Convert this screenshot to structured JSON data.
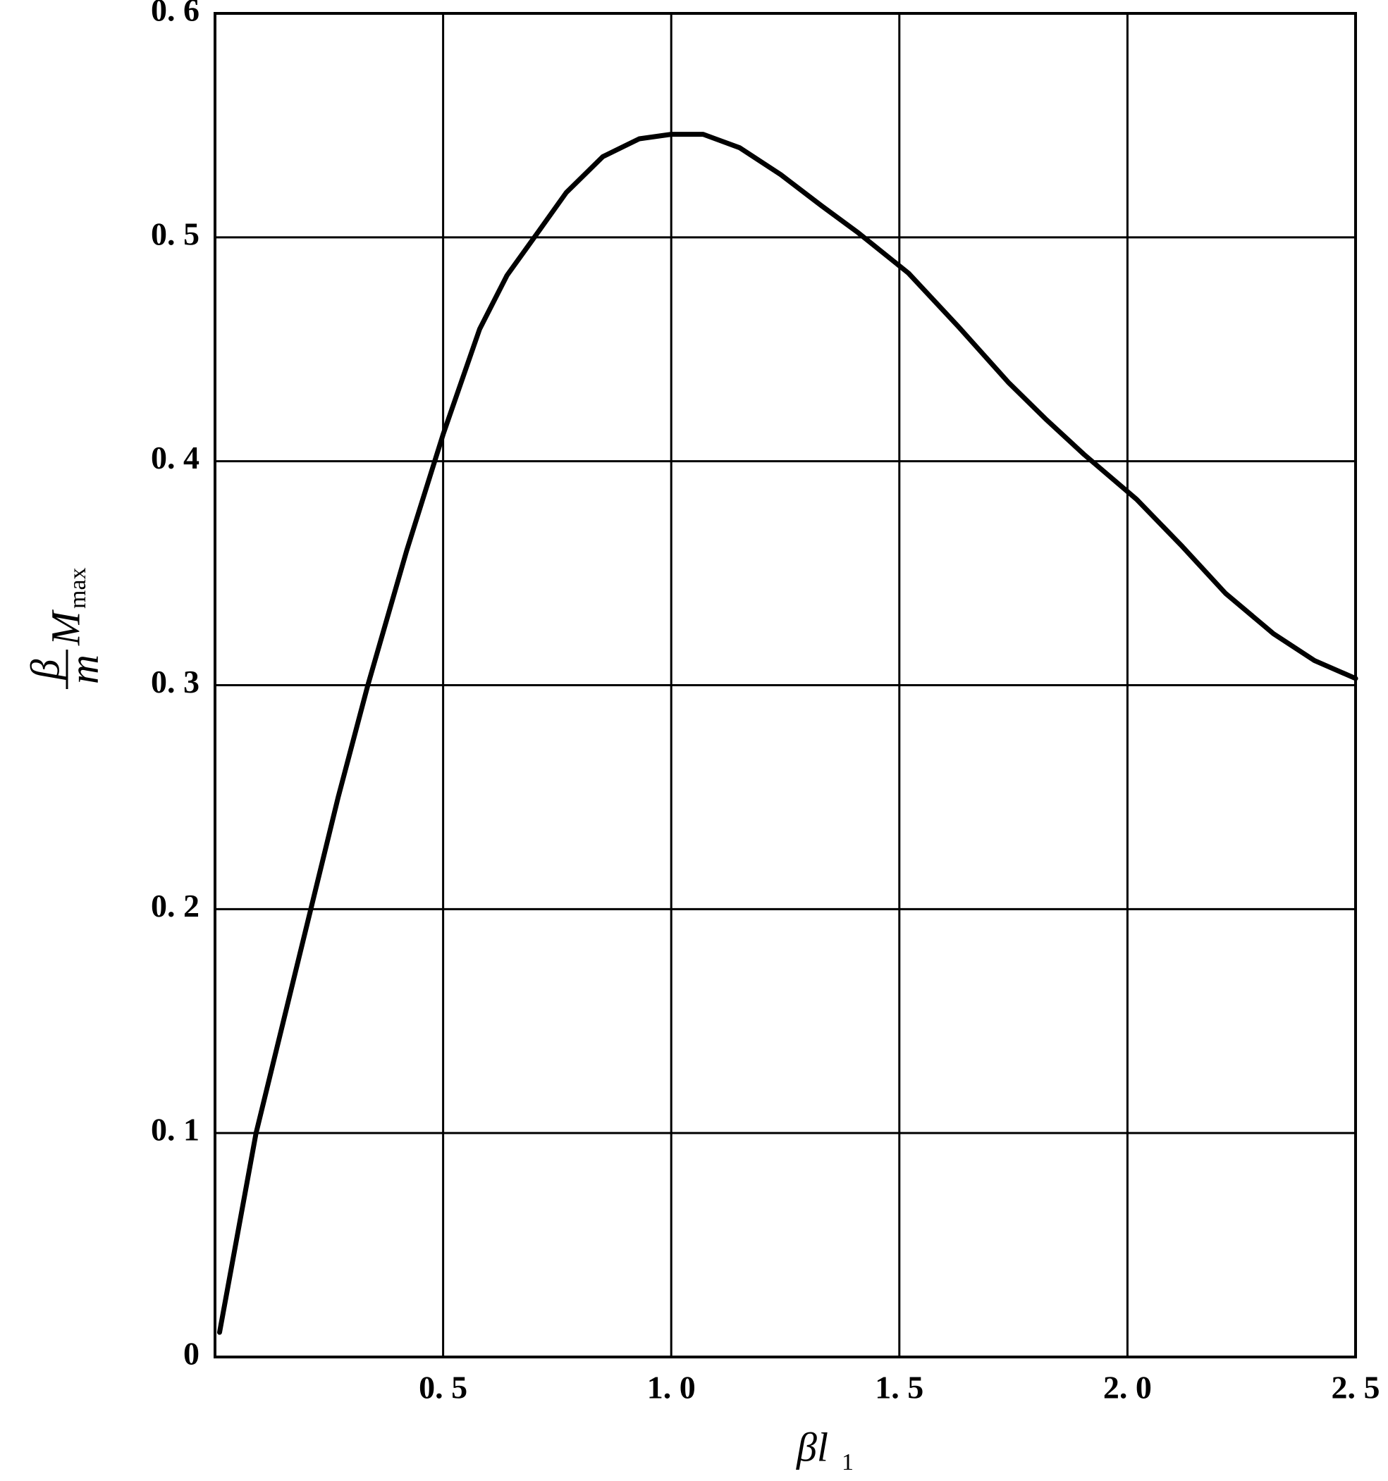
{
  "chart_data": {
    "type": "line",
    "xlabel": {
      "symbol": "βl",
      "subscript": "1"
    },
    "ylabel": {
      "fraction_top": "β",
      "fraction_bottom": "m",
      "symbol": "M",
      "subscript": "max"
    },
    "xlim": [
      0,
      2.5
    ],
    "ylim": [
      0,
      0.6
    ],
    "xticks": [
      {
        "value": 0.5,
        "label": "0. 5"
      },
      {
        "value": 1.0,
        "label": "1. 0"
      },
      {
        "value": 1.5,
        "label": "1. 5"
      },
      {
        "value": 2.0,
        "label": "2. 0"
      },
      {
        "value": 2.5,
        "label": "2. 5"
      }
    ],
    "yticks": [
      0,
      {
        "value": 0.1,
        "label": "0. 1"
      },
      {
        "value": 0.2,
        "label": "0. 2"
      },
      {
        "value": 0.3,
        "label": "0. 3"
      },
      {
        "value": 0.4,
        "label": "0. 4"
      },
      {
        "value": 0.5,
        "label": "0. 5"
      },
      {
        "value": 0.6,
        "label": "0. 6"
      }
    ],
    "grid": true,
    "series": [
      {
        "color": "#000000",
        "x": [
          0.01,
          0.09,
          0.15,
          0.21,
          0.27,
          0.335,
          0.42,
          0.5,
          0.58,
          0.64,
          0.7,
          0.77,
          0.85,
          0.93,
          1.0,
          1.07,
          1.15,
          1.24,
          1.33,
          1.41,
          1.52,
          1.63,
          1.74,
          1.82,
          1.905,
          2.02,
          2.12,
          2.215,
          2.32,
          2.41,
          2.5
        ],
        "values": [
          0.011,
          0.1,
          0.15,
          0.2,
          0.25,
          0.3,
          0.36,
          0.412,
          0.459,
          0.483,
          0.5,
          0.52,
          0.536,
          0.544,
          0.546,
          0.546,
          0.54,
          0.528,
          0.514,
          0.502,
          0.484,
          0.46,
          0.435,
          0.419,
          0.403,
          0.383,
          0.362,
          0.341,
          0.323,
          0.311,
          0.303
        ]
      }
    ]
  }
}
